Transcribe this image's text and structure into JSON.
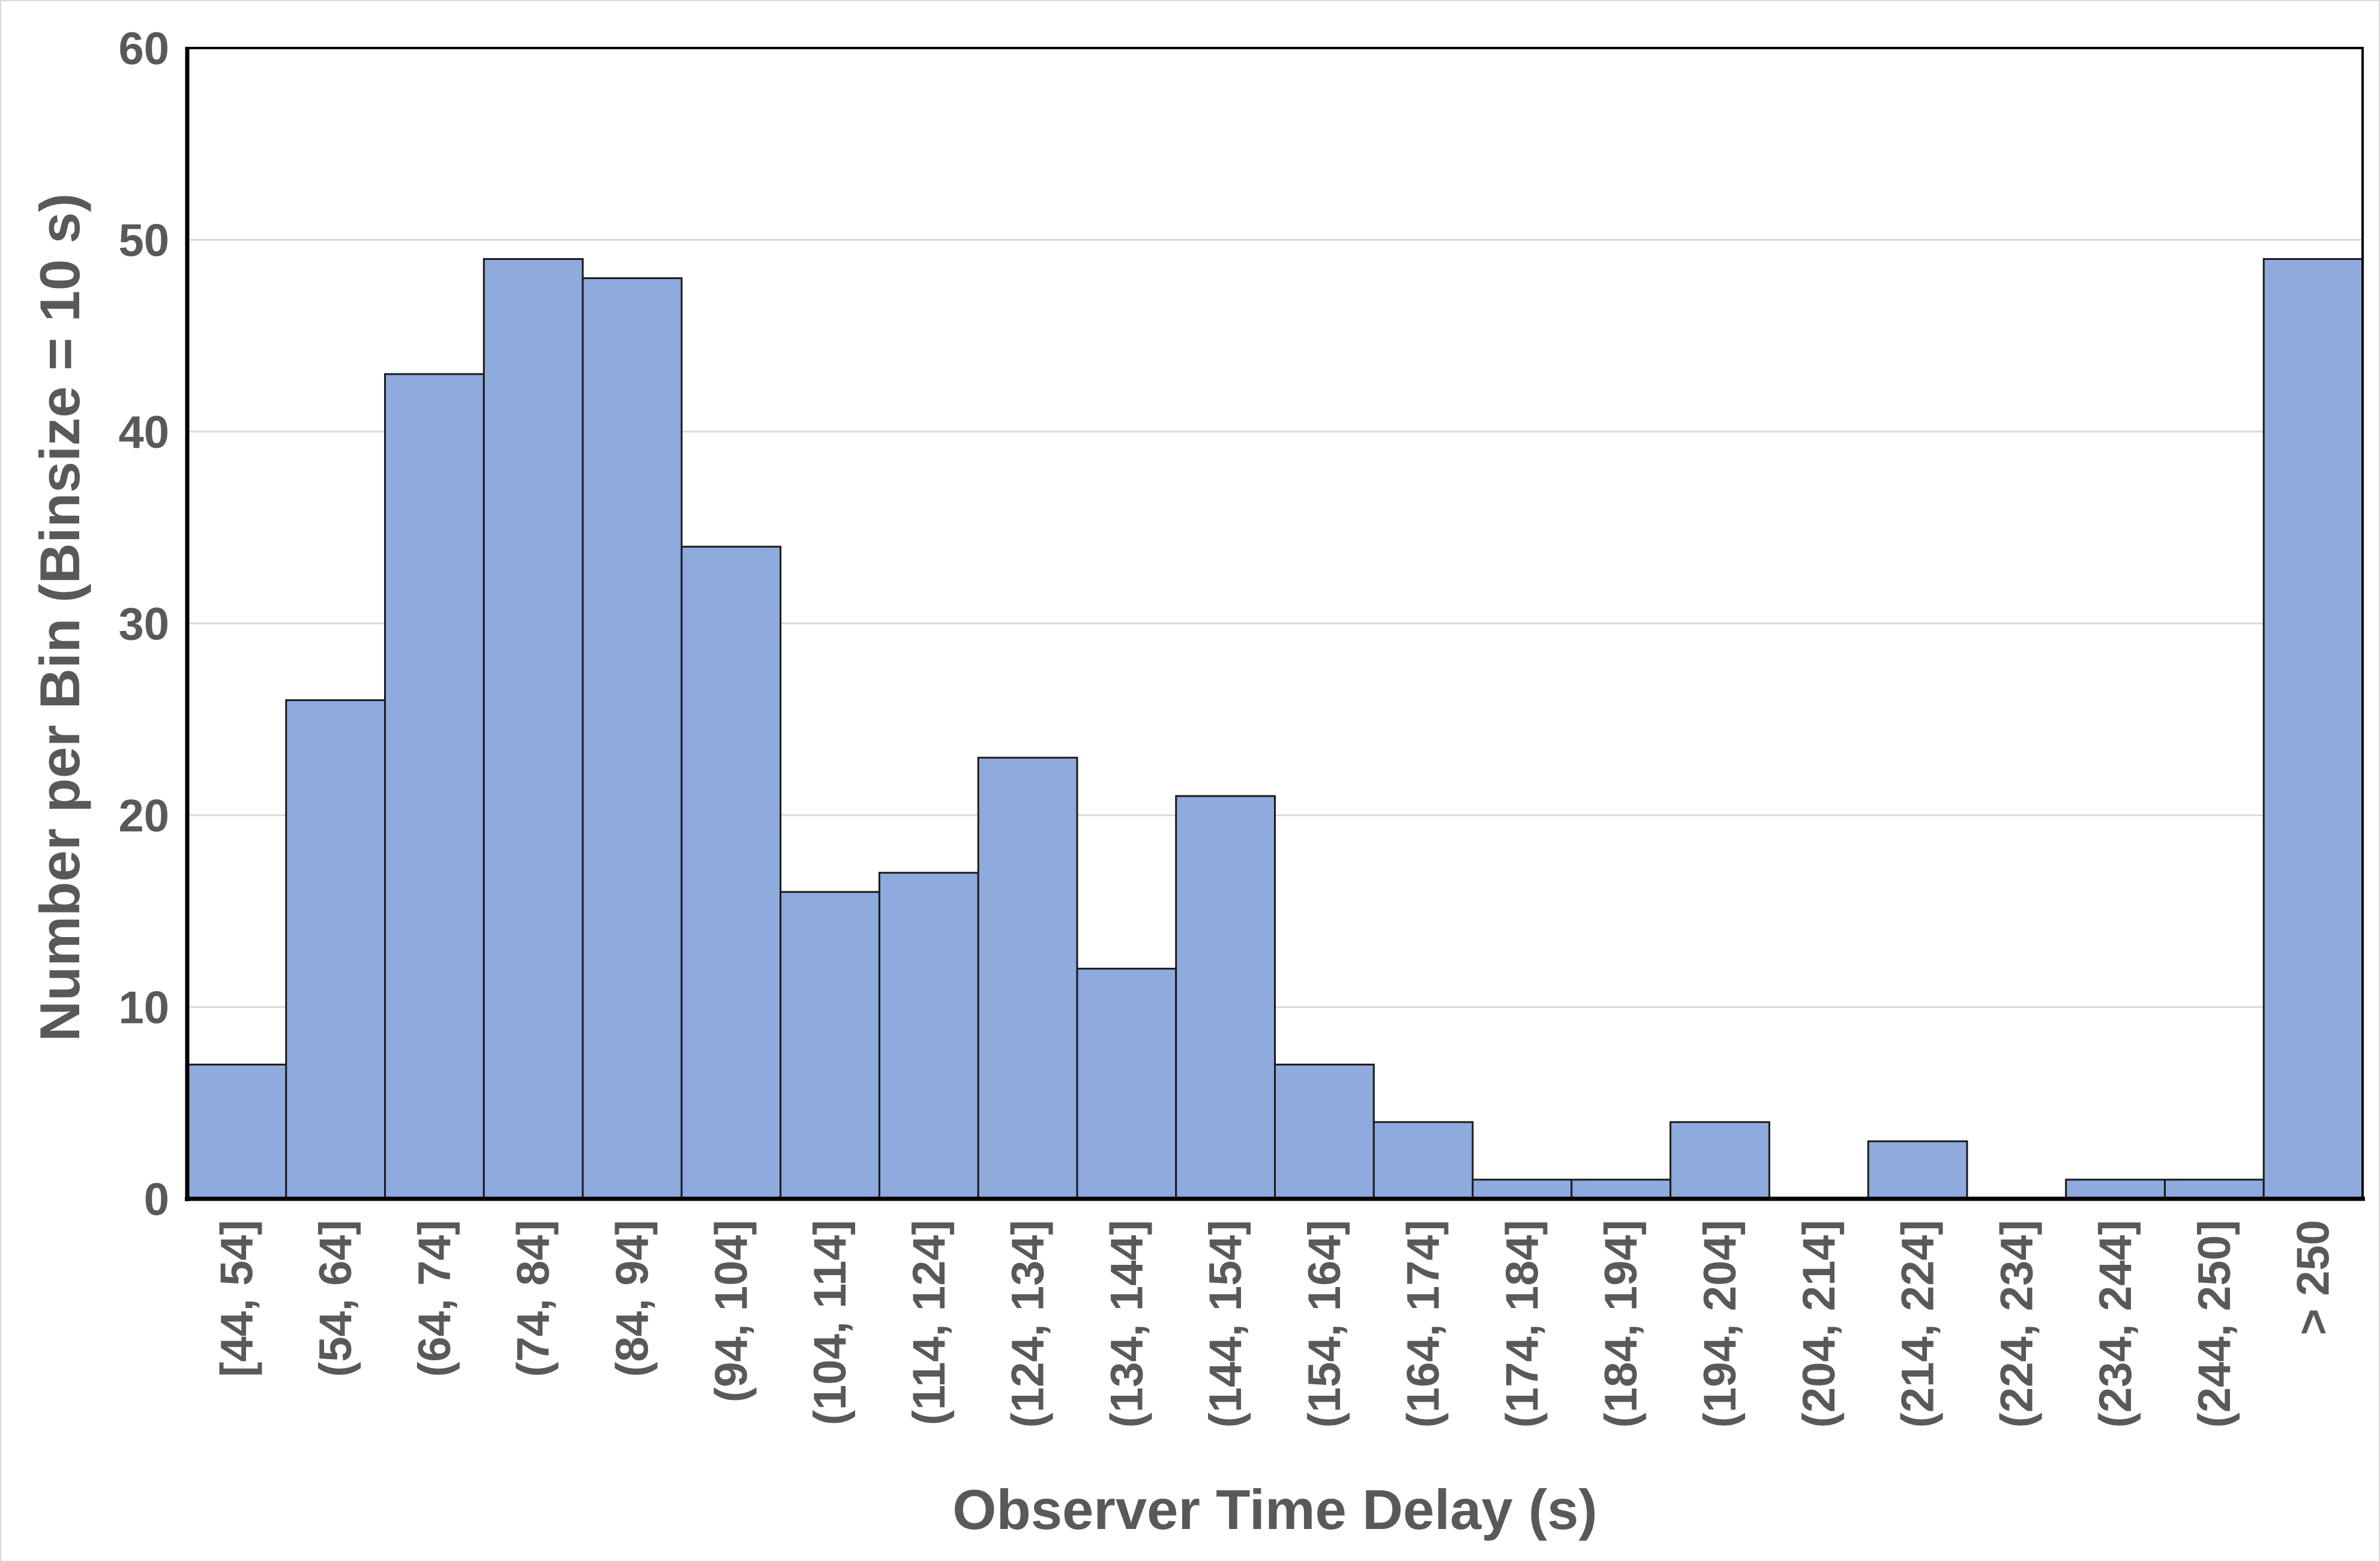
{
  "chart_data": {
    "type": "bar",
    "title": "",
    "xlabel": "Observer Time Delay (s)",
    "ylabel": "Number per Bin (Binsize = 10 s)",
    "ylim": [
      0,
      60
    ],
    "yticks": [
      "0",
      "10",
      "20",
      "30",
      "40",
      "50",
      "60"
    ],
    "grid": true,
    "categories": [
      "[44, 54]",
      "(54, 64]",
      "(64, 74]",
      "(74, 84]",
      "(84, 94]",
      "(94, 104]",
      "(104, 114]",
      "(114, 124]",
      "(124, 134]",
      "(134, 144]",
      "(144, 154]",
      "(154, 164]",
      "(164, 174]",
      "(174, 184]",
      "(184, 194]",
      "(194, 204]",
      "(204, 214]",
      "(214, 224]",
      "(224, 234]",
      "(234, 244]",
      "(244, 250]",
      "> 250"
    ],
    "values": [
      7,
      26,
      43,
      49,
      48,
      34,
      16,
      17,
      23,
      12,
      21,
      7,
      4,
      1,
      1,
      4,
      0,
      3,
      0,
      1,
      1,
      49
    ],
    "colors": {
      "bar": "#8faadc",
      "bar_edge": "#1a1a1a",
      "text": "#595959",
      "grid": "#d9d9d9"
    }
  }
}
